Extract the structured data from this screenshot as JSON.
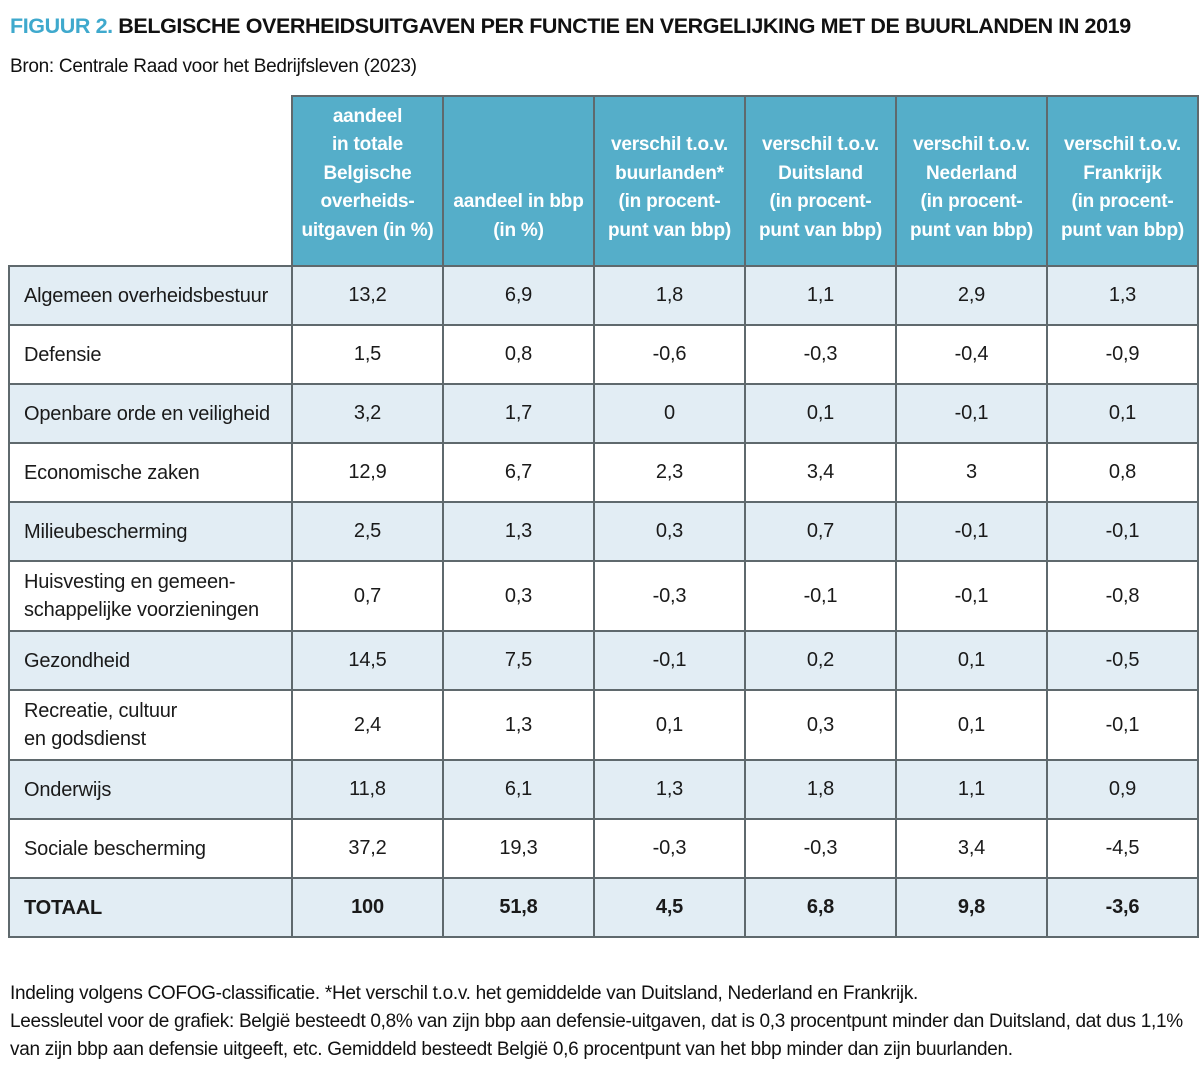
{
  "title": {
    "figure_label": "FIGUUR 2.",
    "text": "BELGISCHE OVERHEIDSUITGAVEN PER FUNCTIE EN VERGELIJKING MET DE BUURLANDEN IN 2019"
  },
  "source": "Bron: Centrale Raad voor het Bedrijfsleven (2023)",
  "colors": {
    "header_teal": "#55AEC9",
    "row_alt_blue": "#E2EDF4",
    "border_gray": "#5F696D",
    "figure_label_blue": "#3FA9CD"
  },
  "table": {
    "headers": [
      {
        "lines": [
          "aandeel",
          "in totale",
          "Belgische",
          "overheids-",
          "uitgaven (in %)"
        ]
      },
      {
        "lines": [
          "aandeel in bbp",
          "(in %)"
        ]
      },
      {
        "lines": [
          "verschil t.o.v.",
          "buurlanden*",
          "(in procent-",
          "punt van bbp)"
        ]
      },
      {
        "lines": [
          "verschil t.o.v.",
          "Duitsland",
          "(in procent-",
          "punt van bbp)"
        ]
      },
      {
        "lines": [
          "verschil t.o.v.",
          "Nederland",
          "(in procent-",
          "punt van bbp)"
        ]
      },
      {
        "lines": [
          "verschil t.o.v.",
          "Frankrijk",
          "(in procent-",
          "punt van bbp)"
        ]
      }
    ],
    "rows": [
      {
        "label_lines": [
          "Algemeen overheidsbestuur"
        ],
        "values": [
          "13,2",
          "6,9",
          "1,8",
          "1,1",
          "2,9",
          "1,3"
        ],
        "bold": false,
        "tall": false
      },
      {
        "label_lines": [
          "Defensie"
        ],
        "values": [
          "1,5",
          "0,8",
          "-0,6",
          "-0,3",
          "-0,4",
          "-0,9"
        ],
        "bold": false,
        "tall": false
      },
      {
        "label_lines": [
          "Openbare orde en veiligheid"
        ],
        "values": [
          "3,2",
          "1,7",
          "0",
          "0,1",
          "-0,1",
          "0,1"
        ],
        "bold": false,
        "tall": false
      },
      {
        "label_lines": [
          "Economische zaken"
        ],
        "values": [
          "12,9",
          "6,7",
          "2,3",
          "3,4",
          "3",
          "0,8"
        ],
        "bold": false,
        "tall": false
      },
      {
        "label_lines": [
          "Milieubescherming"
        ],
        "values": [
          "2,5",
          "1,3",
          "0,3",
          "0,7",
          "-0,1",
          "-0,1"
        ],
        "bold": false,
        "tall": false
      },
      {
        "label_lines": [
          "Huisvesting en gemeen-",
          "schappelijke voorzieningen"
        ],
        "values": [
          "0,7",
          "0,3",
          "-0,3",
          "-0,1",
          "-0,1",
          "-0,8"
        ],
        "bold": false,
        "tall": true
      },
      {
        "label_lines": [
          "Gezondheid"
        ],
        "values": [
          "14,5",
          "7,5",
          "-0,1",
          "0,2",
          "0,1",
          "-0,5"
        ],
        "bold": false,
        "tall": false
      },
      {
        "label_lines": [
          "Recreatie, cultuur",
          "en godsdienst"
        ],
        "values": [
          "2,4",
          "1,3",
          "0,1",
          "0,3",
          "0,1",
          "-0,1"
        ],
        "bold": false,
        "tall": true
      },
      {
        "label_lines": [
          "Onderwijs"
        ],
        "values": [
          "11,8",
          "6,1",
          "1,3",
          "1,8",
          "1,1",
          "0,9"
        ],
        "bold": false,
        "tall": false
      },
      {
        "label_lines": [
          "Sociale bescherming"
        ],
        "values": [
          "37,2",
          "19,3",
          "-0,3",
          "-0,3",
          "3,4",
          "-4,5"
        ],
        "bold": false,
        "tall": false
      },
      {
        "label_lines": [
          "TOTAAL"
        ],
        "values": [
          "100",
          "51,8",
          "4,5",
          "6,8",
          "9,8",
          "-3,6"
        ],
        "bold": true,
        "tall": false
      }
    ]
  },
  "footnotes": [
    "Indeling volgens COFOG-classificatie. *Het verschil t.o.v. het gemiddelde van Duitsland, Nederland en Frankrijk.",
    "Leessleutel voor de grafiek: België besteedt 0,8% van zijn bbp aan defensie-uitgaven, dat is 0,3 procentpunt minder dan Duitsland, dat dus 1,1% van zijn bbp aan defensie uitgeeft, etc. Gemiddeld besteedt België 0,6 procentpunt van het bbp minder dan zijn buurlanden."
  ],
  "chart_data": {
    "type": "table",
    "title": "FIGUUR 2. Belgische overheidsuitgaven per functie en vergelijking met de buurlanden in 2019",
    "source": "Centrale Raad voor het Bedrijfsleven (2023)",
    "columns": [
      "aandeel in totale Belgische overheidsuitgaven (in %)",
      "aandeel in bbp (in %)",
      "verschil t.o.v. buurlanden* (in procentpunt van bbp)",
      "verschil t.o.v. Duitsland (in procentpunt van bbp)",
      "verschil t.o.v. Nederland (in procentpunt van bbp)",
      "verschil t.o.v. Frankrijk (in procentpunt van bbp)"
    ],
    "row_labels": [
      "Algemeen overheidsbestuur",
      "Defensie",
      "Openbare orde en veiligheid",
      "Economische zaken",
      "Milieubescherming",
      "Huisvesting en gemeenschappelijke voorzieningen",
      "Gezondheid",
      "Recreatie, cultuur en godsdienst",
      "Onderwijs",
      "Sociale bescherming",
      "TOTAAL"
    ],
    "rows": [
      [
        13.2,
        6.9,
        1.8,
        1.1,
        2.9,
        1.3
      ],
      [
        1.5,
        0.8,
        -0.6,
        -0.3,
        -0.4,
        -0.9
      ],
      [
        3.2,
        1.7,
        0,
        0.1,
        -0.1,
        0.1
      ],
      [
        12.9,
        6.7,
        2.3,
        3.4,
        3,
        0.8
      ],
      [
        2.5,
        1.3,
        0.3,
        0.7,
        -0.1,
        -0.1
      ],
      [
        0.7,
        0.3,
        -0.3,
        -0.1,
        -0.1,
        -0.8
      ],
      [
        14.5,
        7.5,
        -0.1,
        0.2,
        0.1,
        -0.5
      ],
      [
        2.4,
        1.3,
        0.1,
        0.3,
        0.1,
        -0.1
      ],
      [
        11.8,
        6.1,
        1.3,
        1.8,
        1.1,
        0.9
      ],
      [
        37.2,
        19.3,
        -0.3,
        -0.3,
        3.4,
        -4.5
      ],
      [
        100,
        51.8,
        4.5,
        6.8,
        9.8,
        -3.6
      ]
    ]
  }
}
